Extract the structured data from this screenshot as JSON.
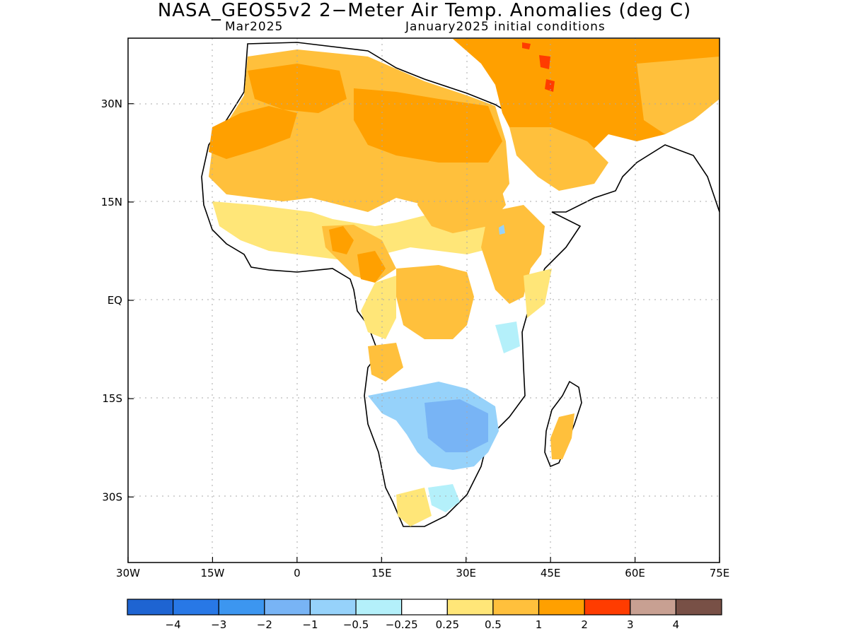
{
  "title": "NASA_GEOS5v2  2−Meter Air Temp. Anomalies (deg C)",
  "valid_month": "Mar2025",
  "initial_conditions": "January2025 initial conditions",
  "axes": {
    "lat_labels": [
      "30N",
      "15N",
      "EQ",
      "15S",
      "30S"
    ],
    "lat_values": [
      30,
      15,
      0,
      -15,
      -30
    ],
    "lon_labels": [
      "30W",
      "15W",
      "0",
      "15E",
      "30E",
      "45E",
      "60E",
      "75E"
    ],
    "lon_values": [
      -30,
      -15,
      0,
      15,
      30,
      45,
      60,
      75
    ],
    "lon_range": [
      -30,
      75
    ],
    "lat_range": [
      -40,
      40
    ],
    "grid": "dotted"
  },
  "colorbar": {
    "colors": [
      "#1e64d2",
      "#2878e6",
      "#3c96f0",
      "#78b4f5",
      "#96d2fa",
      "#b4f0fa",
      "#ffffff",
      "#ffe678",
      "#ffc03c",
      "#ffa000",
      "#ff3c00",
      "#c8a092",
      "#785046"
    ],
    "labels": [
      "−4",
      "−3",
      "−2",
      "−1",
      "−0.5",
      "−0.25",
      "0.25",
      "0.5",
      "1",
      "2",
      "3",
      "4"
    ]
  },
  "anomaly_regions": [
    {
      "name": "north-africa-sahara",
      "color": "#ffc03c"
    },
    {
      "name": "libya-egypt",
      "color": "#ffa000"
    },
    {
      "name": "middle-east",
      "color": "#ffa000"
    },
    {
      "name": "central-africa",
      "color": "#ffc03c"
    },
    {
      "name": "east-africa",
      "color": "#ffc03c"
    },
    {
      "name": "southern-africa",
      "color": "#78b4f5"
    },
    {
      "name": "madagascar",
      "color": "#ffc03c"
    },
    {
      "name": "iraq-hotspot",
      "color": "#ff3c00"
    }
  ]
}
